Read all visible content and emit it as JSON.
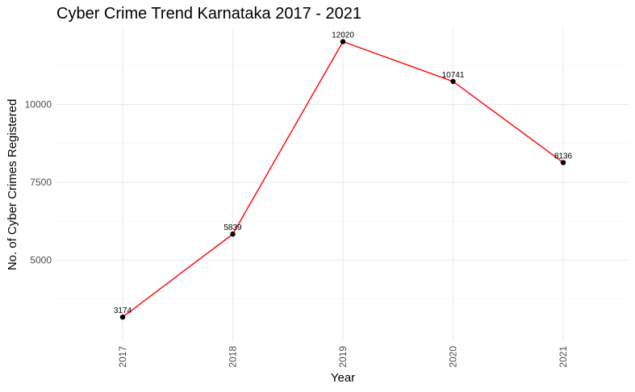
{
  "chart_data": {
    "type": "line",
    "title": "Cyber Crime Trend Karnataka 2017 - 2021",
    "xlabel": "Year",
    "ylabel": "No. of Cyber Crimes Registered",
    "x": [
      "2017",
      "2018",
      "2019",
      "2020",
      "2021"
    ],
    "values": [
      3174,
      5839,
      12020,
      10741,
      8136
    ],
    "y_ticks": [
      5000,
      7500,
      10000
    ],
    "y_tick_labels": [
      "5000",
      "7500",
      "10000"
    ],
    "ylim": [
      2400,
      12450
    ],
    "grid": true,
    "line_color": "#ff0000",
    "point_color": "#000000",
    "x_tick_rotation": "vertical"
  }
}
